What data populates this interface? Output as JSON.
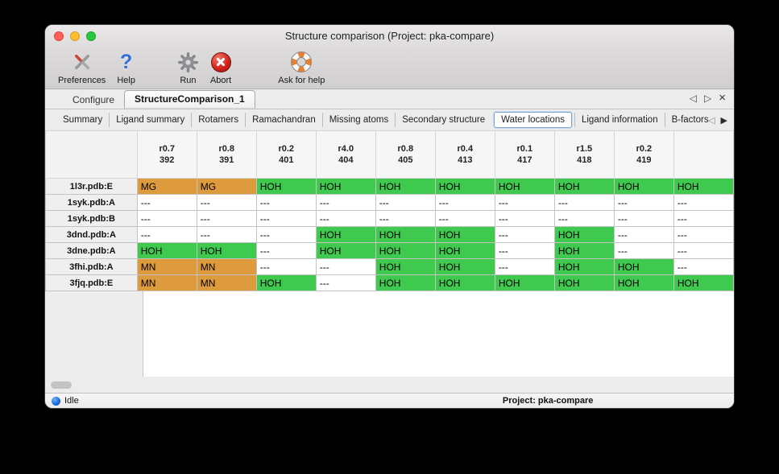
{
  "window": {
    "title": "Structure comparison (Project: pka-compare)"
  },
  "toolbar": {
    "preferences": "Preferences",
    "help": "Help",
    "run": "Run",
    "abort": "Abort",
    "ask_for_help": "Ask for help"
  },
  "tabs": {
    "configure": "Configure",
    "structure_comparison": "StructureComparison_1"
  },
  "subtabs": {
    "items": [
      {
        "label": "Summary",
        "active": false
      },
      {
        "label": "Ligand summary",
        "active": false
      },
      {
        "label": "Rotamers",
        "active": false
      },
      {
        "label": "Ramachandran",
        "active": false
      },
      {
        "label": "Missing atoms",
        "active": false
      },
      {
        "label": "Secondary structure",
        "active": false
      },
      {
        "label": "Water locations",
        "active": true
      },
      {
        "label": "Ligand information",
        "active": false
      },
      {
        "label": "B-factors",
        "active": false
      }
    ]
  },
  "table": {
    "columns": [
      {
        "line1": "r0.7",
        "line2": "392"
      },
      {
        "line1": "r0.8",
        "line2": "391"
      },
      {
        "line1": "r0.2",
        "line2": "401"
      },
      {
        "line1": "r4.0",
        "line2": "404"
      },
      {
        "line1": "r0.8",
        "line2": "405"
      },
      {
        "line1": "r0.4",
        "line2": "413"
      },
      {
        "line1": "r0.1",
        "line2": "417"
      },
      {
        "line1": "r1.5",
        "line2": "418"
      },
      {
        "line1": "r0.2",
        "line2": "419"
      },
      {
        "line1": "",
        "line2": ""
      }
    ],
    "rows": [
      {
        "header": "1l3r.pdb:E",
        "cells": [
          {
            "text": "MG",
            "type": "metal"
          },
          {
            "text": "MG",
            "type": "metal"
          },
          {
            "text": "HOH",
            "type": "water"
          },
          {
            "text": "HOH",
            "type": "water"
          },
          {
            "text": "HOH",
            "type": "water"
          },
          {
            "text": "HOH",
            "type": "water"
          },
          {
            "text": "HOH",
            "type": "water"
          },
          {
            "text": "HOH",
            "type": "water"
          },
          {
            "text": "HOH",
            "type": "water"
          },
          {
            "text": "HOH",
            "type": "water"
          }
        ]
      },
      {
        "header": "1syk.pdb:A",
        "cells": [
          {
            "text": "---",
            "type": "empty"
          },
          {
            "text": "---",
            "type": "empty"
          },
          {
            "text": "---",
            "type": "empty"
          },
          {
            "text": "---",
            "type": "empty"
          },
          {
            "text": "---",
            "type": "empty"
          },
          {
            "text": "---",
            "type": "empty"
          },
          {
            "text": "---",
            "type": "empty"
          },
          {
            "text": "---",
            "type": "empty"
          },
          {
            "text": "---",
            "type": "empty"
          },
          {
            "text": "---",
            "type": "empty"
          }
        ]
      },
      {
        "header": "1syk.pdb:B",
        "cells": [
          {
            "text": "---",
            "type": "empty"
          },
          {
            "text": "---",
            "type": "empty"
          },
          {
            "text": "---",
            "type": "empty"
          },
          {
            "text": "---",
            "type": "empty"
          },
          {
            "text": "---",
            "type": "empty"
          },
          {
            "text": "---",
            "type": "empty"
          },
          {
            "text": "---",
            "type": "empty"
          },
          {
            "text": "---",
            "type": "empty"
          },
          {
            "text": "---",
            "type": "empty"
          },
          {
            "text": "---",
            "type": "empty"
          }
        ]
      },
      {
        "header": "3dnd.pdb:A",
        "cells": [
          {
            "text": "---",
            "type": "empty"
          },
          {
            "text": "---",
            "type": "empty"
          },
          {
            "text": "---",
            "type": "empty"
          },
          {
            "text": "HOH",
            "type": "water"
          },
          {
            "text": "HOH",
            "type": "water"
          },
          {
            "text": "HOH",
            "type": "water"
          },
          {
            "text": "---",
            "type": "empty"
          },
          {
            "text": "HOH",
            "type": "water"
          },
          {
            "text": "---",
            "type": "empty"
          },
          {
            "text": "---",
            "type": "empty"
          }
        ]
      },
      {
        "header": "3dne.pdb:A",
        "cells": [
          {
            "text": "HOH",
            "type": "water"
          },
          {
            "text": "HOH",
            "type": "water"
          },
          {
            "text": "---",
            "type": "empty"
          },
          {
            "text": "HOH",
            "type": "water"
          },
          {
            "text": "HOH",
            "type": "water"
          },
          {
            "text": "HOH",
            "type": "water"
          },
          {
            "text": "---",
            "type": "empty"
          },
          {
            "text": "HOH",
            "type": "water"
          },
          {
            "text": "---",
            "type": "empty"
          },
          {
            "text": "---",
            "type": "empty"
          }
        ]
      },
      {
        "header": "3fhi.pdb:A",
        "cells": [
          {
            "text": "MN",
            "type": "metal"
          },
          {
            "text": "MN",
            "type": "metal"
          },
          {
            "text": "---",
            "type": "empty"
          },
          {
            "text": "---",
            "type": "empty"
          },
          {
            "text": "HOH",
            "type": "water"
          },
          {
            "text": "HOH",
            "type": "water"
          },
          {
            "text": "---",
            "type": "empty"
          },
          {
            "text": "HOH",
            "type": "water"
          },
          {
            "text": "HOH",
            "type": "water"
          },
          {
            "text": "---",
            "type": "empty"
          }
        ]
      },
      {
        "header": "3fjq.pdb:E",
        "cells": [
          {
            "text": "MN",
            "type": "metal"
          },
          {
            "text": "MN",
            "type": "metal"
          },
          {
            "text": "HOH",
            "type": "water"
          },
          {
            "text": "---",
            "type": "empty"
          },
          {
            "text": "HOH",
            "type": "water"
          },
          {
            "text": "HOH",
            "type": "water"
          },
          {
            "text": "HOH",
            "type": "water"
          },
          {
            "text": "HOH",
            "type": "water"
          },
          {
            "text": "HOH",
            "type": "water"
          },
          {
            "text": "HOH",
            "type": "water"
          }
        ]
      }
    ]
  },
  "statusbar": {
    "status": "Idle",
    "project": "Project: pka-compare"
  },
  "colors": {
    "water": "#3fc94f",
    "metal": "#dd9b3e"
  }
}
